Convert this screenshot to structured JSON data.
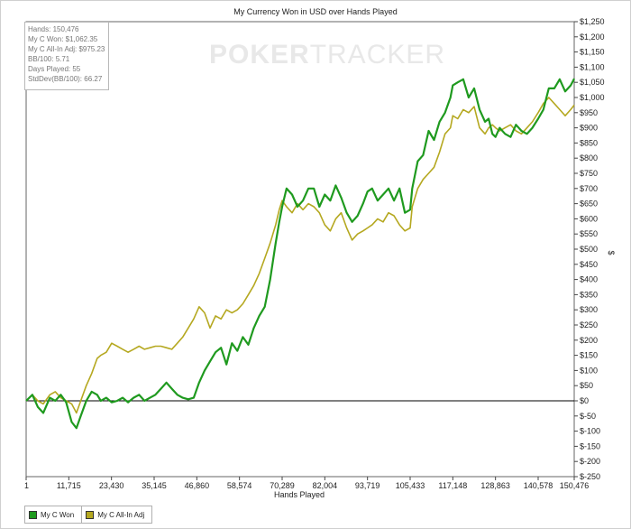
{
  "chart_data": {
    "type": "line",
    "title": "My Currency Won in USD over Hands Played",
    "xlabel": "Hands Played",
    "ylabel": "$",
    "xlim": [
      1,
      150476
    ],
    "ylim": [
      -250,
      1250
    ],
    "x_ticks": [
      "1",
      "11,715",
      "23,430",
      "35,145",
      "46,860",
      "58,574",
      "70,289",
      "82,004",
      "93,719",
      "105,433",
      "117,148",
      "128,863",
      "140,578",
      "150,476"
    ],
    "x_tick_values": [
      1,
      11715,
      23430,
      35145,
      46860,
      58574,
      70289,
      82004,
      93719,
      105433,
      117148,
      128863,
      140578,
      150476
    ],
    "y_ticks": [
      "$-250",
      "$-200",
      "$-150",
      "$-100",
      "$-50",
      "$0",
      "$50",
      "$100",
      "$150",
      "$200",
      "$250",
      "$300",
      "$350",
      "$400",
      "$450",
      "$500",
      "$550",
      "$600",
      "$650",
      "$700",
      "$750",
      "$800",
      "$850",
      "$900",
      "$950",
      "$1,000",
      "$1,050",
      "$1,100",
      "$1,150",
      "$1,200",
      "$1,250"
    ],
    "y_tick_values": [
      -250,
      -200,
      -150,
      -100,
      -50,
      0,
      50,
      100,
      150,
      200,
      250,
      300,
      350,
      400,
      450,
      500,
      550,
      600,
      650,
      700,
      750,
      800,
      850,
      900,
      950,
      1000,
      1050,
      1100,
      1150,
      1200,
      1250
    ],
    "grid": false,
    "legend_position": "bottom-left",
    "series": [
      {
        "name": "My C Won",
        "color": "#1f9a1f",
        "x": [
          1,
          1700,
          3200,
          4700,
          6500,
          8000,
          9500,
          11000,
          12500,
          13800,
          15000,
          16500,
          18000,
          19500,
          20500,
          22000,
          23500,
          25000,
          26500,
          28000,
          29500,
          31000,
          32500,
          34000,
          35500,
          37000,
          38500,
          40000,
          41500,
          43000,
          44500,
          46000,
          47500,
          49000,
          50500,
          52000,
          53500,
          55000,
          56500,
          58000,
          59500,
          61000,
          62500,
          64000,
          65500,
          67000,
          68500,
          69500,
          70289,
          71500,
          73000,
          74500,
          76000,
          77500,
          79000,
          80500,
          82004,
          83500,
          85000,
          86500,
          88000,
          89500,
          91000,
          92500,
          93719,
          95000,
          96500,
          98000,
          99500,
          101000,
          102500,
          104000,
          105433,
          106000,
          107500,
          109000,
          110500,
          112000,
          113500,
          115000,
          116500,
          117148,
          118500,
          120000,
          121500,
          123000,
          124500,
          126000,
          127000,
          128000,
          128863,
          130000,
          131500,
          133000,
          134500,
          136000,
          137500,
          139000,
          140578,
          142000,
          143500,
          145000,
          146500,
          148000,
          149500,
          150476
        ],
        "y": [
          0,
          20,
          -20,
          -40,
          10,
          0,
          20,
          -5,
          -70,
          -90,
          -50,
          0,
          30,
          20,
          0,
          10,
          -5,
          0,
          10,
          -5,
          10,
          20,
          0,
          10,
          20,
          40,
          60,
          40,
          20,
          10,
          5,
          10,
          60,
          100,
          130,
          160,
          175,
          120,
          190,
          165,
          210,
          185,
          240,
          280,
          310,
          400,
          520,
          590,
          640,
          700,
          680,
          640,
          660,
          700,
          700,
          640,
          680,
          660,
          710,
          670,
          620,
          590,
          610,
          650,
          690,
          700,
          660,
          680,
          700,
          660,
          700,
          620,
          630,
          700,
          790,
          810,
          890,
          860,
          920,
          950,
          1000,
          1040,
          1050,
          1060,
          1000,
          1030,
          960,
          920,
          930,
          880,
          870,
          900,
          880,
          870,
          910,
          890,
          880,
          900,
          930,
          960,
          1030,
          1030,
          1060,
          1020,
          1040,
          1062
        ]
      },
      {
        "name": "My C All-In Adj",
        "color": "#b5a820",
        "x": [
          1,
          1700,
          3200,
          4700,
          6500,
          8000,
          9500,
          11000,
          12500,
          13800,
          15000,
          16500,
          18000,
          19500,
          20500,
          22000,
          23500,
          25000,
          26500,
          28000,
          29500,
          31000,
          32500,
          34000,
          35500,
          37000,
          38500,
          40000,
          41500,
          43000,
          44500,
          46000,
          47500,
          49000,
          50500,
          52000,
          53500,
          55000,
          56500,
          58000,
          59500,
          61000,
          62500,
          64000,
          65500,
          67000,
          68500,
          69500,
          70289,
          71500,
          73000,
          74500,
          76000,
          77500,
          79000,
          80500,
          82004,
          83500,
          85000,
          86500,
          88000,
          89500,
          91000,
          92500,
          93719,
          95000,
          96500,
          98000,
          99500,
          101000,
          102500,
          104000,
          105433,
          106000,
          107500,
          109000,
          110500,
          112000,
          113500,
          115000,
          116500,
          117148,
          118500,
          120000,
          121500,
          123000,
          124500,
          126000,
          127000,
          128000,
          128863,
          130000,
          131500,
          133000,
          134500,
          136000,
          137500,
          139000,
          140578,
          142000,
          143500,
          145000,
          146500,
          148000,
          149500,
          150476
        ],
        "y": [
          0,
          20,
          0,
          -10,
          20,
          30,
          10,
          0,
          -10,
          -40,
          0,
          50,
          90,
          140,
          150,
          160,
          190,
          180,
          170,
          160,
          170,
          180,
          170,
          175,
          180,
          180,
          175,
          170,
          190,
          210,
          240,
          270,
          310,
          290,
          240,
          280,
          270,
          300,
          290,
          300,
          320,
          350,
          380,
          420,
          470,
          520,
          580,
          630,
          660,
          640,
          620,
          650,
          630,
          650,
          640,
          620,
          580,
          560,
          600,
          620,
          570,
          530,
          550,
          560,
          570,
          580,
          600,
          590,
          620,
          610,
          580,
          560,
          570,
          640,
          700,
          730,
          750,
          770,
          820,
          880,
          900,
          940,
          930,
          960,
          950,
          970,
          900,
          880,
          900,
          910,
          900,
          890,
          900,
          910,
          890,
          880,
          900,
          920,
          950,
          980,
          1000,
          980,
          960,
          940,
          960,
          975
        ]
      }
    ]
  },
  "stats": {
    "hands": "Hands: 150,476",
    "won": "My C Won: $1,062.35",
    "allin": "My C All-In Adj: $975.23",
    "bb100": "BB/100: 5.71",
    "days": "Days Played: 55",
    "stddev": "StdDev(BB/100): 66.27"
  },
  "watermark": {
    "brand": "POKER",
    "brand_suffix": "TRACKER"
  }
}
